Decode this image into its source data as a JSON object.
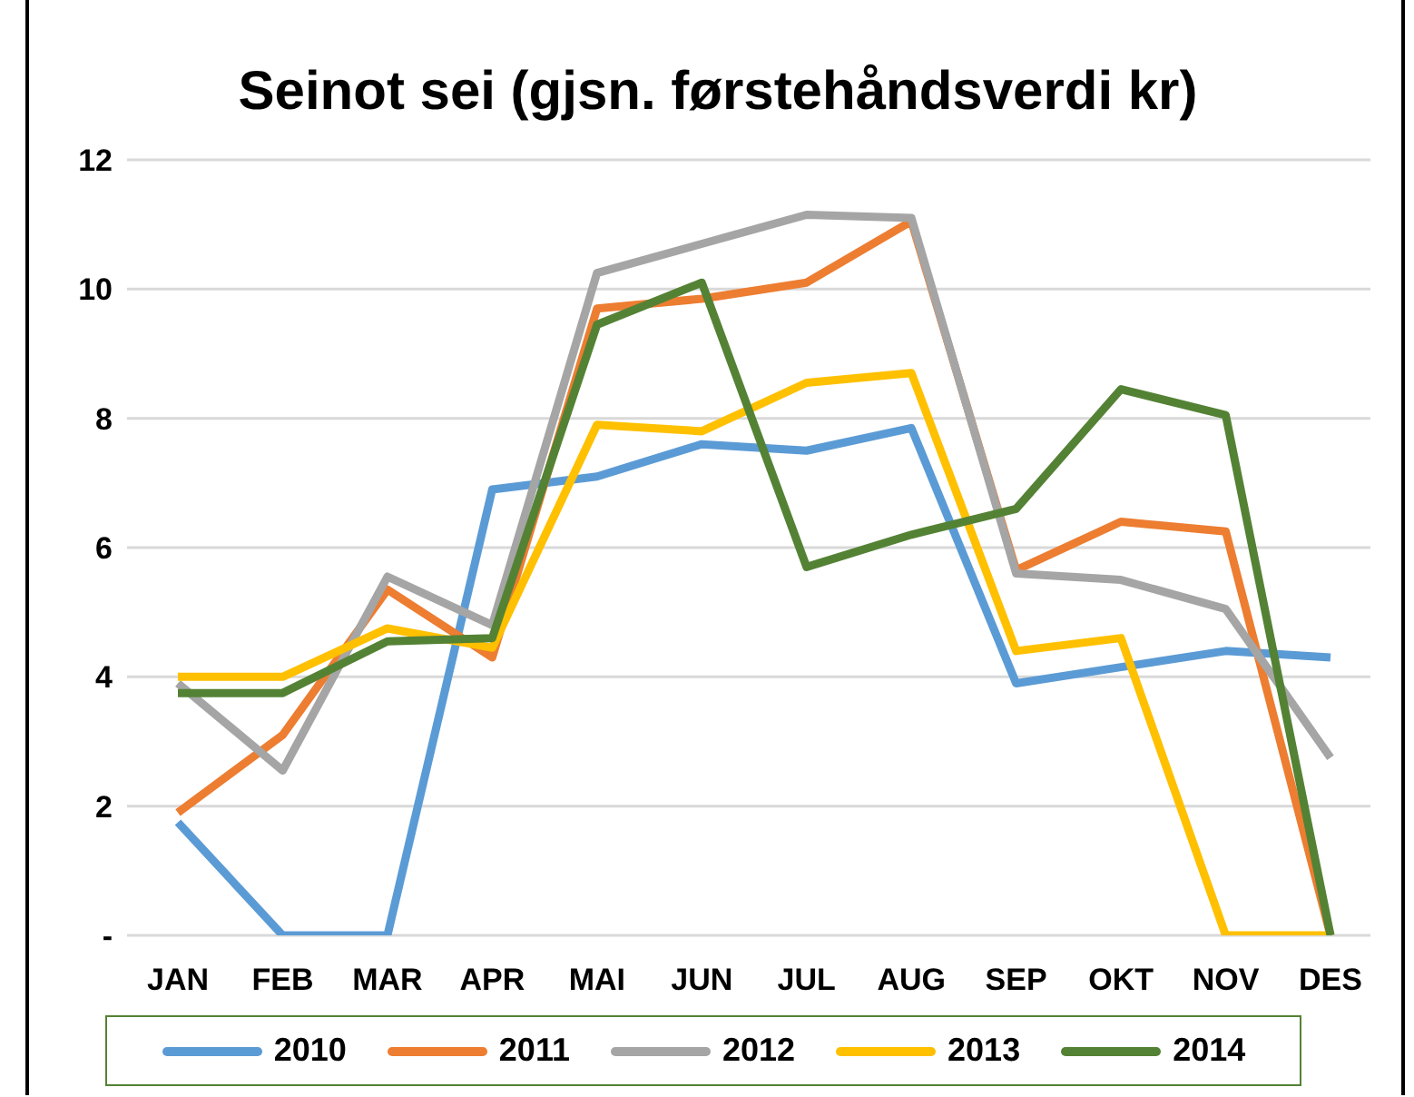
{
  "chart_data": {
    "type": "line",
    "title": "Seinot sei (gjsn. førstehåndsverdi kr)",
    "categories": [
      "JAN",
      "FEB",
      "MAR",
      "APR",
      "MAI",
      "JUN",
      "JUL",
      "AUG",
      "SEP",
      "OKT",
      "NOV",
      "DES"
    ],
    "series": [
      {
        "name": "2010",
        "color": "#5b9bd5",
        "values": [
          1.75,
          0,
          0,
          6.9,
          7.1,
          7.6,
          7.5,
          7.85,
          3.9,
          4.15,
          4.4,
          4.3
        ]
      },
      {
        "name": "2011",
        "color": "#ed7d31",
        "values": [
          1.9,
          3.1,
          5.35,
          4.3,
          9.7,
          9.85,
          10.1,
          11.05,
          5.65,
          6.4,
          6.25,
          0
        ]
      },
      {
        "name": "2012",
        "color": "#a5a5a5",
        "values": [
          3.9,
          2.55,
          5.55,
          4.8,
          10.25,
          10.7,
          11.15,
          11.1,
          5.6,
          5.5,
          5.05,
          2.75
        ]
      },
      {
        "name": "2013",
        "color": "#ffc000",
        "values": [
          4,
          4,
          4.75,
          4.45,
          7.9,
          7.8,
          8.55,
          8.7,
          4.4,
          4.6,
          0,
          0
        ]
      },
      {
        "name": "2014",
        "color": "#548235",
        "values": [
          3.75,
          3.75,
          4.55,
          4.6,
          9.45,
          10.1,
          5.7,
          6.2,
          6.6,
          8.45,
          8.05,
          0
        ]
      }
    ],
    "ylim": [
      0,
      12
    ],
    "yticks": [
      {
        "value": 0,
        "label": "-"
      },
      2,
      4,
      6,
      8,
      10,
      12
    ],
    "grid": "y",
    "legend": "bottom",
    "marker": "none",
    "line_style": "solid"
  }
}
